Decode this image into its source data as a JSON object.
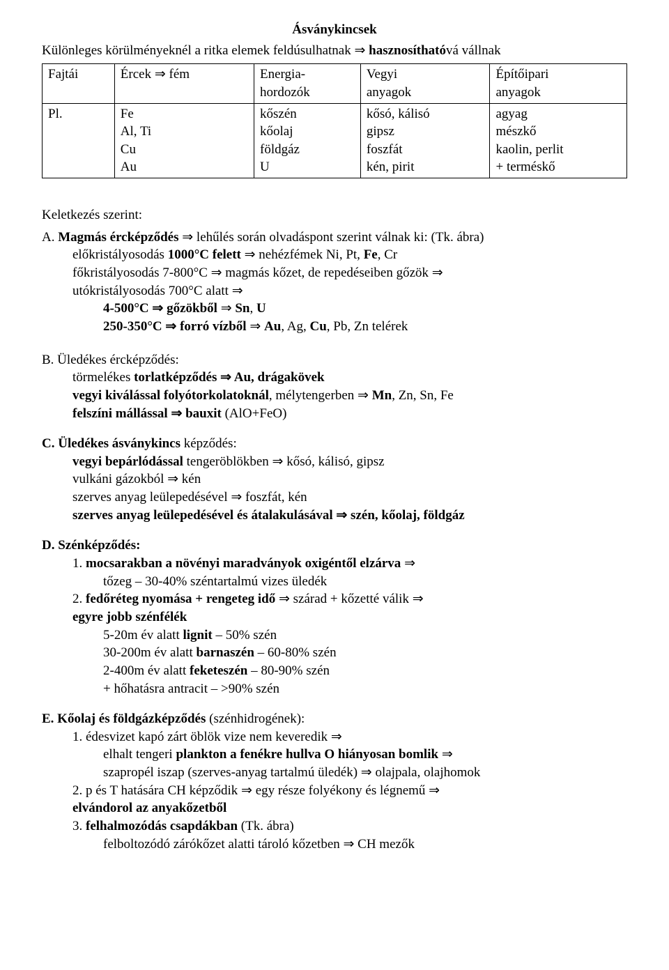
{
  "title": "Ásványkincsek",
  "subtitle_pre": "Különleges körülményeknél a ritka elemek feldúsulhatnak ⇒ ",
  "subtitle_bold": "hasznosítható",
  "subtitle_post": "vá vállnak",
  "table": {
    "col0_r0": "Fajtái",
    "col0_r1": "Pl.",
    "col1_r0": "Ércek ⇒ fém",
    "col1_r1_l1": "Fe",
    "col1_r1_l2": "Al, Ti",
    "col1_r1_l3": "Cu",
    "col1_r1_l4": "Au",
    "col2_r0_l1": "Energia-",
    "col2_r0_l2": "hordozók",
    "col2_r1_l1": "kőszén",
    "col2_r1_l2": "kőolaj",
    "col2_r1_l3": "földgáz",
    "col2_r1_l4": "U",
    "col3_r0_l1": "Vegyi",
    "col3_r0_l2": "anyagok",
    "col3_r1_l1": "kősó, kálisó",
    "col3_r1_l2": "gipsz",
    "col3_r1_l3": "foszfát",
    "col3_r1_l4": "kén, pirit",
    "col4_r0_l1": "Építőipari",
    "col4_r0_l2": "anyagok",
    "col4_r1_l1": "agyag",
    "col4_r1_l2": "mészkő",
    "col4_r1_l3": "kaolin, perlit",
    "col4_r1_l4": "+ terméskő"
  },
  "secA": {
    "heading": "Keletkezés szerint:",
    "title_pre": "A. ",
    "title_bold": "Magmás ércképződés",
    "title_post": " ⇒ lehűlés során olvadáspont szerint válnak ki: (Tk. ábra)",
    "l1_a": "előkristályosodás ",
    "l1_b": "1000°C felett",
    "l1_c": " ⇒ nehézfémek Ni, Pt, ",
    "l1_d": "Fe",
    "l1_e": ", Cr",
    "l2": "főkristályosodás 7-800°C ⇒ magmás kőzet, de repedéseiben gőzök ⇒",
    "l3": "utókristályosodás 700°C alatt ⇒",
    "l4_a": "4-500",
    "l4_b": "°C  ⇒ ",
    "l4_c": "gőzökből",
    "l4_d": " ⇒ ",
    "l4_e": "Sn",
    "l4_f": ", ",
    "l4_g": "U",
    "l5_a": "250-350°C ⇒ ",
    "l5_b": "forró vízből",
    "l5_c": " ⇒ ",
    "l5_d": "Au",
    "l5_e": ", Ag, ",
    "l5_f": "Cu",
    "l5_g": ", Pb, Zn telérek"
  },
  "secB": {
    "title": "B. Üledékes ércképződés:",
    "l1_a": "törmelékes ",
    "l1_b": "torlatképződés ⇒ Au, drágakövek",
    "l2_a": "vegyi kiválással folyótorkolatoknál",
    "l2_b": ", mélytengerben ⇒ ",
    "l2_c": "Mn",
    "l2_d": ", Zn, Sn, Fe",
    "l3_a": "felszíni mállással ⇒ bauxit",
    "l3_b": " (AlO+FeO)"
  },
  "secC": {
    "title": "C. Üledékes ásványkincs ",
    "title_b": "képződés:",
    "l1_a": "vegyi bepárlódással",
    "l1_b": " tengeröblökben ⇒ kősó, kálisó, gipsz",
    "l2": "vulkáni gázokból ⇒ kén",
    "l3": "szerves anyag leülepedésével ⇒ foszfát, kén",
    "l4": "szerves anyag leülepedésével és átalakulásával ⇒ szén, kőolaj, földgáz"
  },
  "secD": {
    "title": "D. Szénképződés:",
    "l1_a": "1. ",
    "l1_b": "mocsarakban a növényi maradványok oxigéntől elzárva",
    "l1_c": " ⇒",
    "l2": "tőzeg – 30-40% széntartalmú vizes üledék",
    "l3_a": "2. ",
    "l3_b": "fedőréteg nyomása + rengeteg idő",
    "l3_c": " ⇒ szárad + kőzetté válik ⇒",
    "l4": "egyre jobb szénfélék",
    "l5_a": "5-20m év alatt ",
    "l5_b": "lignit",
    "l5_c": " – 50% szén",
    "l6_a": "30-200m év alatt ",
    "l6_b": "barnaszén",
    "l6_c": " – 60-80% szén",
    "l7_a": "2-400m év alatt ",
    "l7_b": "feketeszén",
    "l7_c": " – 80-90% szén",
    "l8": "+ hőhatásra antracit – >90% szén"
  },
  "secE": {
    "title_a": "E. Kőolaj és földgázképződés",
    "title_b": " (szénhidrogének):",
    "l1": "1. édesvizet kapó zárt öblök vize nem keveredik ⇒",
    "l2_a": "elhalt tengeri ",
    "l2_b": "plankton a fenékre hullva O hiányosan bomlik",
    "l2_c": " ⇒",
    "l3": "szapropél iszap (szerves-anyag tartalmú üledék) ⇒ olajpala, olajhomok",
    "l4": "2. p és T hatására CH képződik ⇒ egy része folyékony és légnemű ⇒",
    "l5": "elvándorol az anyakőzetből",
    "l6_a": "3. ",
    "l6_b": "felhalmozódás csapdákban",
    "l6_c": " (Tk. ábra)",
    "l7": "felboltozódó zárókőzet alatti tároló kőzetben ⇒ CH mezők"
  }
}
